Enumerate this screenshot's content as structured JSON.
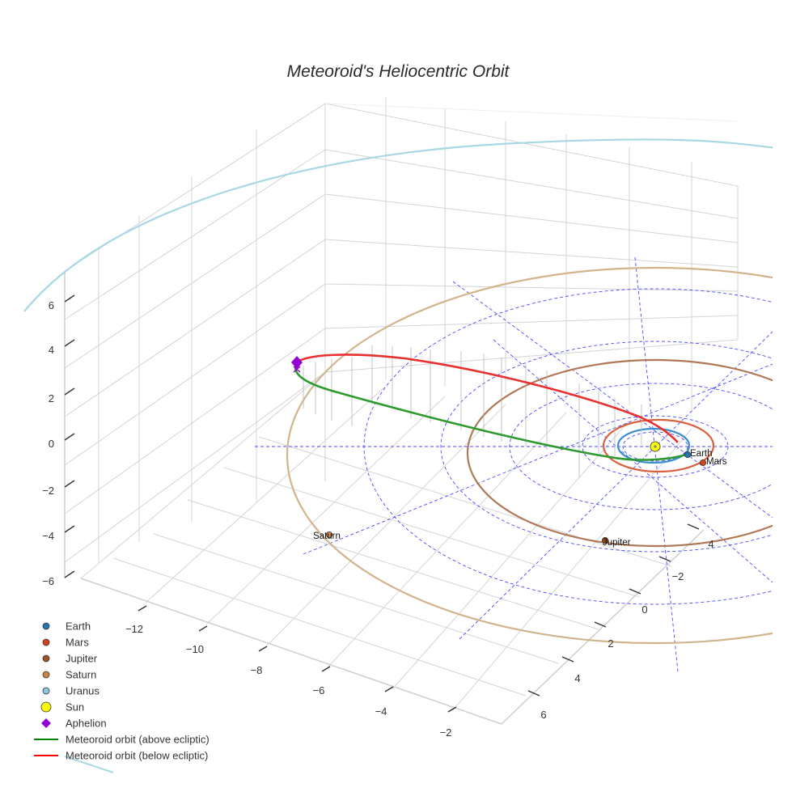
{
  "chart_data": {
    "type": "scatter3d",
    "title": "Meteoroid's Heliocentric Orbit",
    "axes": {
      "x": {
        "ticks": [
          -12,
          -10,
          -8,
          -6,
          -4,
          -2
        ]
      },
      "y": {
        "ticks": [
          -2,
          0,
          2,
          4,
          6
        ]
      },
      "z": {
        "ticks": [
          6,
          4,
          2,
          0,
          -2,
          -4,
          -6
        ]
      }
    },
    "planet_orbits": [
      {
        "name": "Earth",
        "radius_au": 1.0,
        "color": "#3b8fd1"
      },
      {
        "name": "Mars",
        "radius_au": 1.52,
        "color": "#d9603b"
      },
      {
        "name": "Jupiter",
        "radius_au": 5.2,
        "color": "#b07856"
      },
      {
        "name": "Saturn",
        "radius_au": 9.5,
        "color": "#d2b48c"
      },
      {
        "name": "Uranus",
        "radius_au": 19.2,
        "color": "#a8d8e3"
      }
    ],
    "planet_labels": [
      "Earth",
      "Mars",
      "Jupiter",
      "Saturn"
    ],
    "meteoroid_orbit": {
      "perihelion_au": 0.9,
      "aphelion_au": 11.3,
      "above_ecliptic_color": "#2e9a2e",
      "below_ecliptic_color": "#e8302e",
      "aphelion_color": "#9400d3"
    },
    "sun_color": "#ffff00",
    "ecliptic_grid_color": "#3b3bff",
    "legend": [
      {
        "label": "Earth",
        "marker": "circle",
        "color": "#1f77b4"
      },
      {
        "label": "Mars",
        "marker": "circle",
        "color": "#d1441c"
      },
      {
        "label": "Jupiter",
        "marker": "circle",
        "color": "#a0522d"
      },
      {
        "label": "Saturn",
        "marker": "circle",
        "color": "#cd853f"
      },
      {
        "label": "Uranus",
        "marker": "circle",
        "color": "#8fc8df"
      },
      {
        "label": "Sun",
        "marker": "circle-large",
        "color": "#ffff00"
      },
      {
        "label": "Aphelion",
        "marker": "diamond",
        "color": "#9400d3"
      },
      {
        "label": "Meteoroid orbit (above ecliptic)",
        "marker": "line",
        "color": "#008000"
      },
      {
        "label": "Meteoroid orbit (below ecliptic)",
        "marker": "line",
        "color": "#ff0000"
      }
    ]
  }
}
